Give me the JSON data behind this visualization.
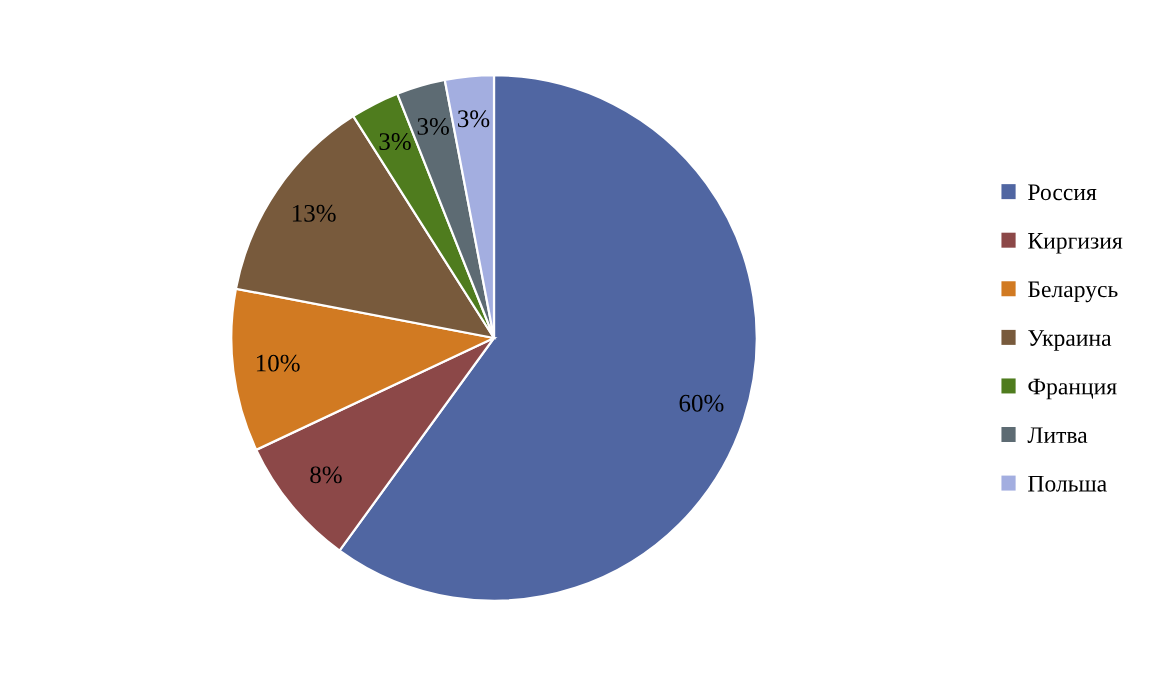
{
  "chart_data": {
    "type": "pie",
    "categories": [
      "Россия",
      "Киргизия",
      "Беларусь",
      "Украина",
      "Франция",
      "Литва",
      "Польша"
    ],
    "values": [
      60,
      8,
      10,
      13,
      3,
      3,
      3
    ],
    "colors": [
      "#5066a2",
      "#8c4848",
      "#d17a22",
      "#785a3c",
      "#4f7c1e",
      "#5d6b73",
      "#a3aee0"
    ],
    "value_labels": [
      "60%",
      "8%",
      "10%",
      "13%",
      "3%",
      "3%",
      "3%"
    ],
    "legend": "right"
  }
}
